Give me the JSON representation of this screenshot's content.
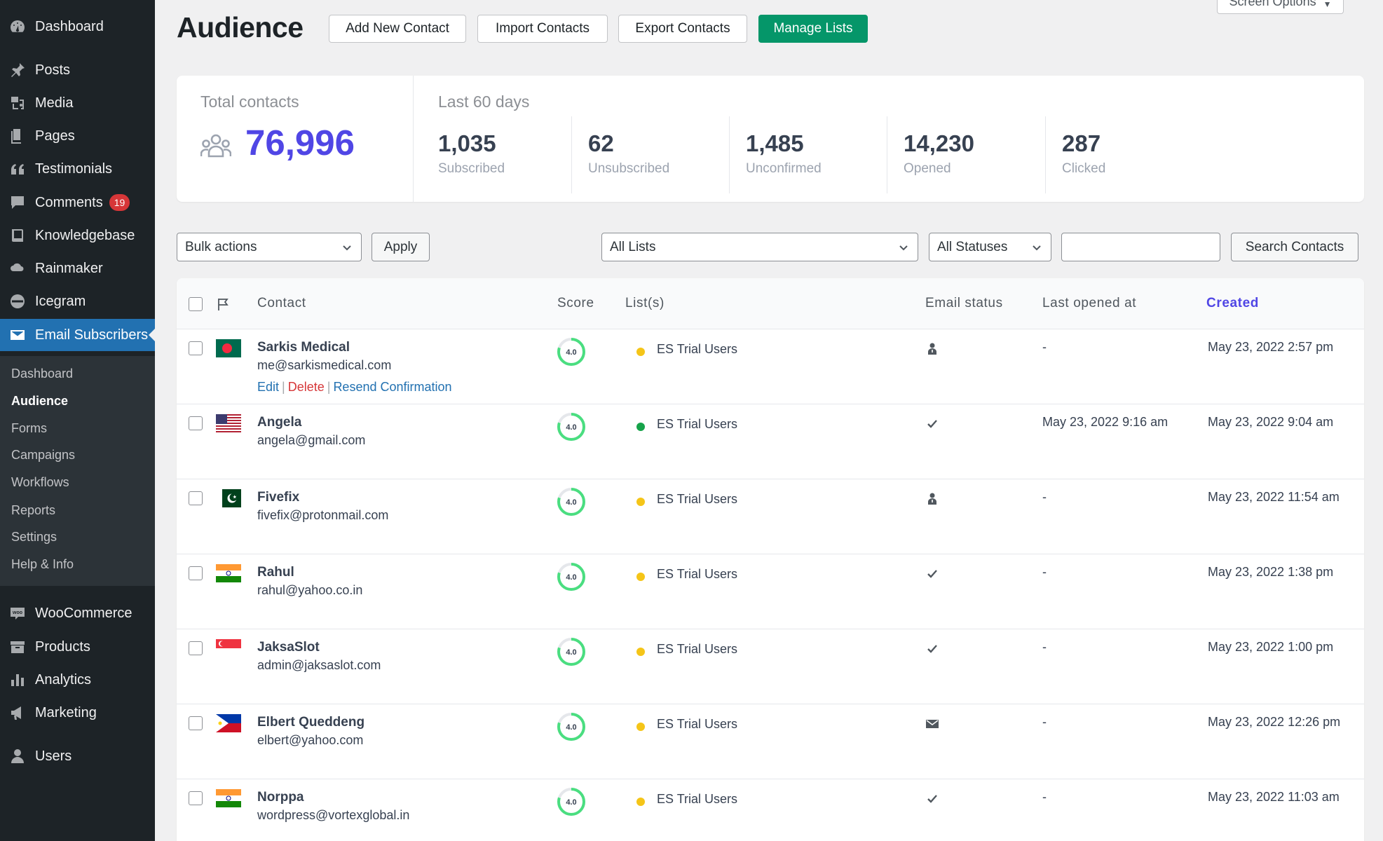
{
  "sidebar": {
    "menu": [
      {
        "label": "Dashboard",
        "icon": "dashboard-icon"
      },
      {
        "label": "Posts",
        "icon": "pin-icon"
      },
      {
        "label": "Media",
        "icon": "media-icon"
      },
      {
        "label": "Pages",
        "icon": "pages-icon"
      },
      {
        "label": "Testimonials",
        "icon": "quote-icon"
      },
      {
        "label": "Comments",
        "icon": "comment-icon",
        "badge": "19"
      },
      {
        "label": "Knowledgebase",
        "icon": "book-icon"
      },
      {
        "label": "Rainmaker",
        "icon": "cloud-icon"
      },
      {
        "label": "Icegram",
        "icon": "icegram-icon"
      },
      {
        "label": "Email Subscribers",
        "icon": "envelope-icon",
        "active": true
      },
      {
        "label": "WooCommerce",
        "icon": "woo-icon"
      },
      {
        "label": "Products",
        "icon": "archive-icon"
      },
      {
        "label": "Analytics",
        "icon": "bar-chart-icon"
      },
      {
        "label": "Marketing",
        "icon": "megaphone-icon"
      },
      {
        "label": "Users",
        "icon": "user-icon"
      }
    ],
    "submenu": [
      "Dashboard",
      "Audience",
      "Forms",
      "Campaigns",
      "Workflows",
      "Reports",
      "Settings",
      "Help & Info"
    ],
    "submenu_current": "Audience"
  },
  "header": {
    "title": "Audience",
    "buttons": [
      "Add New Contact",
      "Import Contacts",
      "Export Contacts",
      "Manage Lists"
    ],
    "screen_options": "Screen Options"
  },
  "stats": {
    "total_label": "Total contacts",
    "total_value": "76,996",
    "period_label": "Last 60 days",
    "items": [
      {
        "value": "1,035",
        "label": "Subscribed"
      },
      {
        "value": "62",
        "label": "Unsubscribed"
      },
      {
        "value": "1,485",
        "label": "Unconfirmed"
      },
      {
        "value": "14,230",
        "label": "Opened"
      },
      {
        "value": "287",
        "label": "Clicked"
      }
    ]
  },
  "filters": {
    "bulk_actions": "Bulk actions",
    "apply": "Apply",
    "lists": "All Lists",
    "statuses": "All Statuses",
    "search_value": "",
    "search_button": "Search Contacts"
  },
  "table": {
    "columns": {
      "contact": "Contact",
      "score": "Score",
      "lists": "List(s)",
      "email_status": "Email status",
      "last_opened": "Last opened at",
      "created": "Created"
    },
    "row_actions": {
      "edit": "Edit",
      "delete": "Delete",
      "resend": "Resend Confirmation"
    },
    "rows": [
      {
        "name": "Sarkis Medical",
        "email": "me@sarkismedical.com",
        "flag": "bangladesh",
        "score": "4.0",
        "list": "ES Trial Users",
        "list_status_color": "#f5c518",
        "email_status": "unconfirmed",
        "last_opened": "-",
        "created": "May 23, 2022 2:57 pm",
        "show_actions": true
      },
      {
        "name": "Angela",
        "email": "angela@gmail.com",
        "flag": "usa",
        "score": "4.0",
        "list": "ES Trial Users",
        "list_status_color": "#16a34a",
        "email_status": "subscribed",
        "last_opened": "May 23, 2022 9:16 am",
        "created": "May 23, 2022 9:04 am",
        "show_actions": false
      },
      {
        "name": "Fivefix",
        "email": "fivefix@protonmail.com",
        "flag": "pakistan",
        "score": "4.0",
        "list": "ES Trial Users",
        "list_status_color": "#f5c518",
        "email_status": "unconfirmed",
        "last_opened": "-",
        "created": "May 23, 2022 11:54 am",
        "show_actions": false
      },
      {
        "name": "Rahul",
        "email": "rahul@yahoo.co.in",
        "flag": "india",
        "score": "4.0",
        "list": "ES Trial Users",
        "list_status_color": "#f5c518",
        "email_status": "subscribed",
        "last_opened": "-",
        "created": "May 23, 2022 1:38 pm",
        "show_actions": false
      },
      {
        "name": "JaksaSlot",
        "email": "admin@jaksaslot.com",
        "flag": "singapore",
        "score": "4.0",
        "list": "ES Trial Users",
        "list_status_color": "#f5c518",
        "email_status": "subscribed",
        "last_opened": "-",
        "created": "May 23, 2022 1:00 pm",
        "show_actions": false
      },
      {
        "name": "Elbert Queddeng",
        "email": "elbert@yahoo.com",
        "flag": "philippines",
        "score": "4.0",
        "list": "ES Trial Users",
        "list_status_color": "#f5c518",
        "email_status": "emailed",
        "last_opened": "-",
        "created": "May 23, 2022 12:26 pm",
        "show_actions": false
      },
      {
        "name": "Norppa",
        "email": "wordpress@vortexglobal.in",
        "flag": "india",
        "score": "4.0",
        "list": "ES Trial Users",
        "list_status_color": "#f5c518",
        "email_status": "subscribed",
        "last_opened": "-",
        "created": "May 23, 2022 11:03 am",
        "show_actions": false
      }
    ]
  },
  "colors": {
    "accent": "#5046e5",
    "primary_button": "#059669",
    "wp_active": "#2271b1",
    "score_ring": "#4ade80"
  }
}
